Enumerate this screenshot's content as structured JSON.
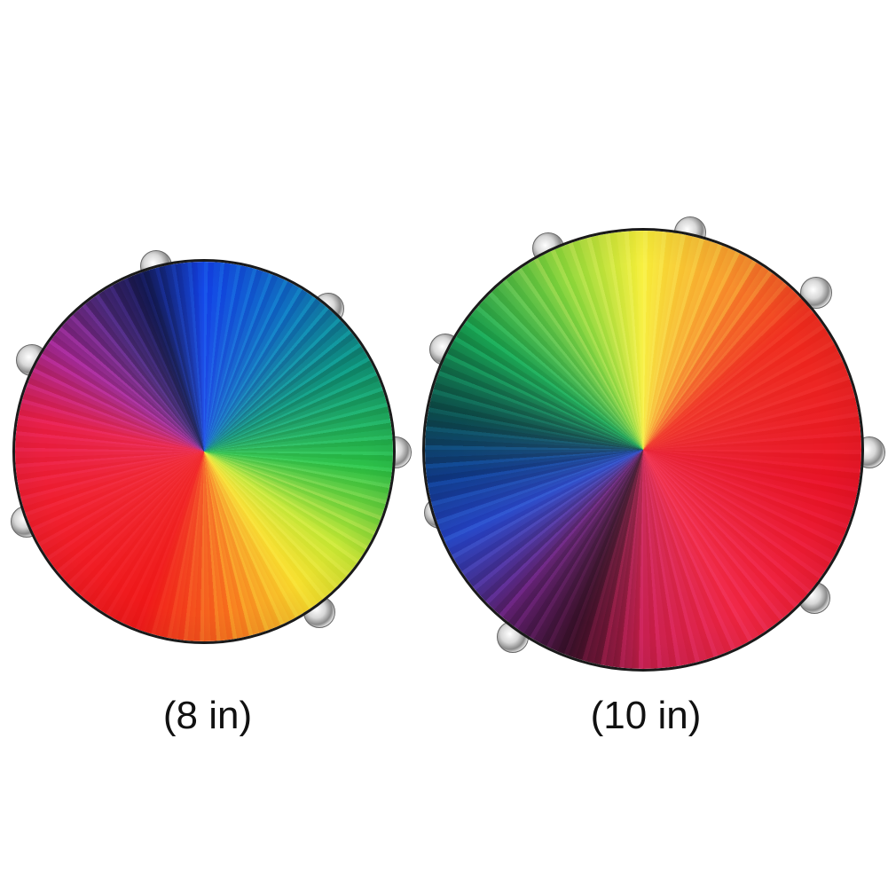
{
  "products": [
    {
      "label": "(8 in)",
      "colors": [
        "#1448e8",
        "#0f8f78",
        "#2cc048",
        "#f8e030",
        "#f01a1a",
        "#a02890",
        "#141850"
      ]
    },
    {
      "label": "(10 in)",
      "colors": [
        "#f8f040",
        "#f03020",
        "#e81428",
        "#3a1028",
        "#2848c8",
        "#18a050"
      ]
    }
  ]
}
